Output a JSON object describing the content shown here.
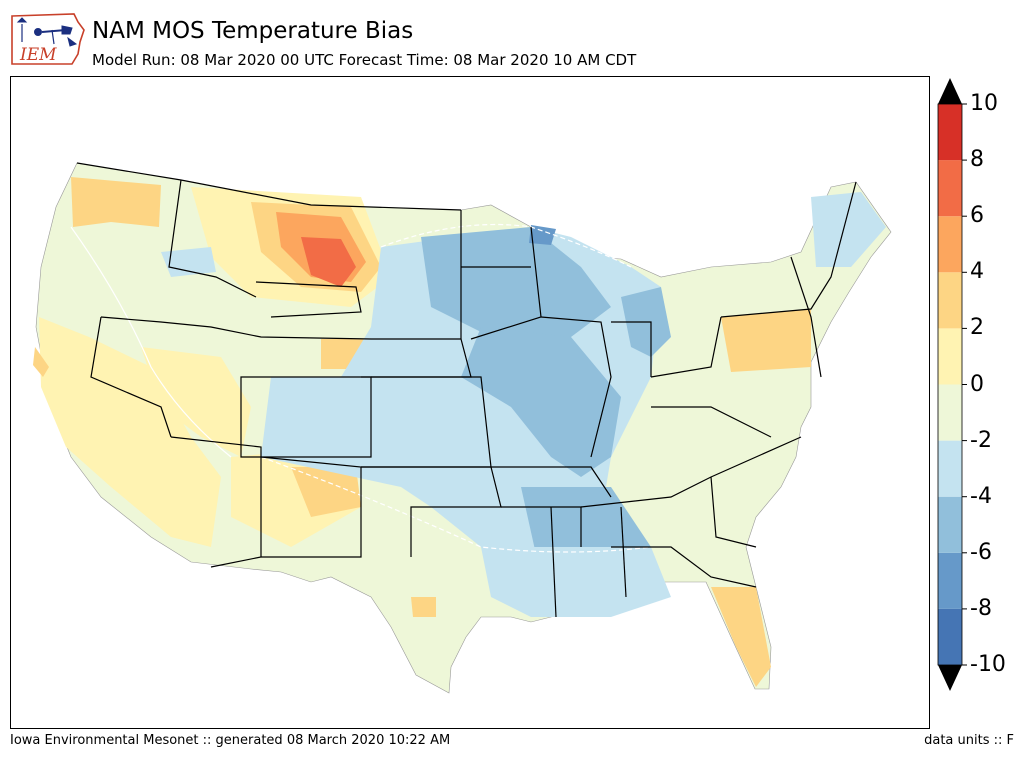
{
  "header": {
    "title": "NAM MOS Temperature Bias",
    "subtitle": "Model Run: 08 Mar 2020 00 UTC Forecast Time: 08 Mar 2020 10 AM CDT"
  },
  "logo": {
    "text": "IEM",
    "icon": "iowa-state-outline-icon"
  },
  "map": {
    "region": "contiguous-united-states",
    "variable": "temperature-bias",
    "overlay": "state-boundaries"
  },
  "colorbar": {
    "levels": [
      -10,
      -8,
      -6,
      -4,
      -2,
      0,
      2,
      4,
      6,
      8,
      10
    ],
    "labels": [
      "10",
      "8",
      "6",
      "4",
      "2",
      "0",
      "-2",
      "-4",
      "-6",
      "-8",
      "-10"
    ],
    "colors": [
      "#4575b4",
      "#6699c9",
      "#91bfdb",
      "#c4e3f0",
      "#eef7d8",
      "#fff3b2",
      "#fdd584",
      "#fca65e",
      "#f26c46",
      "#d73027"
    ],
    "extend": "both",
    "over_color": "#000000",
    "under_color": "#000000"
  },
  "footer": {
    "left": "Iowa Environmental Mesonet :: generated 08 March 2020 10:22 AM",
    "right": "data units :: F"
  }
}
